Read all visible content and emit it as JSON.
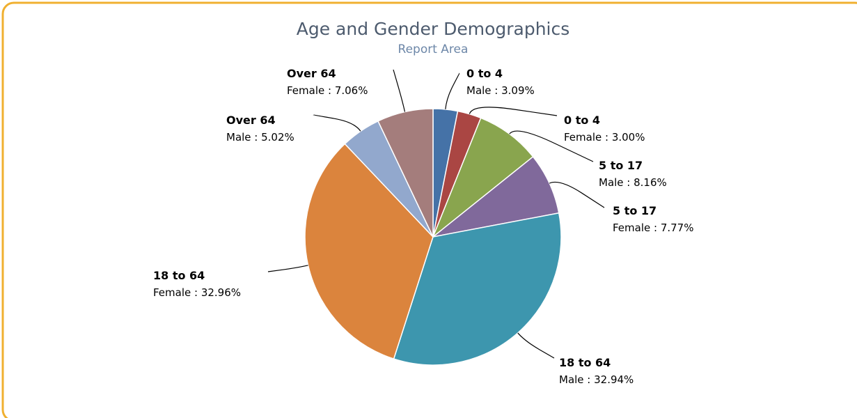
{
  "chart_data": {
    "type": "pie",
    "title": "Age and Gender Demographics",
    "subtitle": "Report Area",
    "categories": [
      "0 to 4",
      "0 to 4",
      "5 to 17",
      "5 to 17",
      "18 to 64",
      "18 to 64",
      "Over 64",
      "Over 64"
    ],
    "values": [
      3.09,
      3.0,
      8.16,
      7.77,
      32.94,
      32.96,
      5.02,
      7.06
    ],
    "value_labels": [
      "Male : 3.09%",
      "Female : 3.00%",
      "Male : 8.16%",
      "Female : 7.77%",
      "Male : 32.94%",
      "Female : 32.96%",
      "Male : 5.02%",
      "Female : 7.06%"
    ],
    "colors": [
      "#4572A7",
      "#AA4643",
      "#89A54E",
      "#80699B",
      "#3D96AE",
      "#DB843D",
      "#92A8CD",
      "#A47D7C"
    ]
  }
}
